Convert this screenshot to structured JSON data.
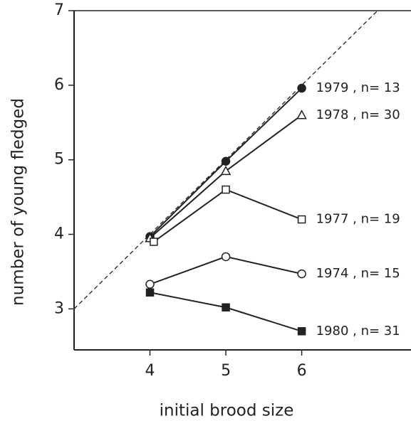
{
  "chart_data": {
    "type": "line",
    "xlabel": "initial brood size",
    "ylabel": "number of young fledged",
    "xlim": [
      3,
      7.44
    ],
    "ylim": [
      2.45,
      7
    ],
    "xticks": [
      4,
      5,
      6
    ],
    "yticks": [
      3,
      4,
      5,
      6,
      7
    ],
    "reference_line": {
      "x": [
        3,
        7
      ],
      "y": [
        3,
        7
      ],
      "style": "dashed"
    },
    "series": [
      {
        "name": "1979 , n= 13",
        "marker": "filled-circle",
        "color": "#222",
        "x": [
          4,
          5,
          6
        ],
        "values": [
          3.97,
          4.98,
          5.96
        ]
      },
      {
        "name": "1978 , n= 30",
        "marker": "triangle",
        "color": "#222",
        "x": [
          4,
          5,
          6
        ],
        "values": [
          3.95,
          4.85,
          5.6
        ]
      },
      {
        "name": "1977 , n= 19",
        "marker": "square",
        "color": "#222",
        "x": [
          4.05,
          5,
          6
        ],
        "values": [
          3.9,
          4.6,
          4.2
        ]
      },
      {
        "name": "1974 , n= 15",
        "marker": "circle",
        "color": "#222",
        "x": [
          4,
          5,
          6
        ],
        "values": [
          3.33,
          3.7,
          3.47
        ]
      },
      {
        "name": "1980 , n= 31",
        "marker": "filled-square",
        "color": "#222",
        "x": [
          4,
          5,
          6
        ],
        "values": [
          3.22,
          3.02,
          2.7
        ]
      }
    ]
  }
}
